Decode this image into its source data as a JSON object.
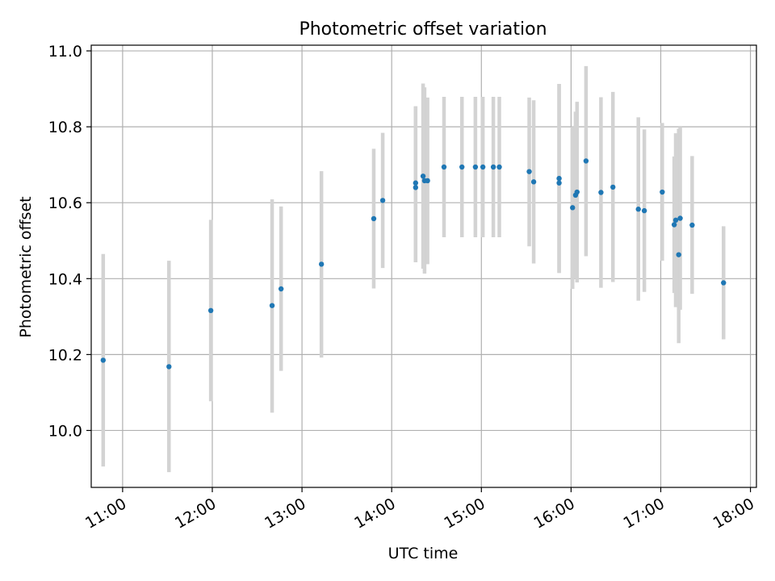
{
  "chart_data": {
    "type": "scatter",
    "title": "Photometric offset variation",
    "xlabel": "UTC time",
    "ylabel": "Photometric offset",
    "x_is_time": true,
    "xlim": [
      "10:39",
      "18:04"
    ],
    "ylim": [
      9.85,
      11.015
    ],
    "xticks": [
      "11:00",
      "12:00",
      "13:00",
      "14:00",
      "15:00",
      "16:00",
      "17:00",
      "18:00"
    ],
    "yticks": [
      10.0,
      10.2,
      10.4,
      10.6,
      10.8,
      11.0
    ],
    "ytick_labels": [
      "10.0",
      "10.2",
      "10.4",
      "10.6",
      "10.8",
      "11.0"
    ],
    "grid": true,
    "point_color": "#1f77b4",
    "errorbar_color": "#d3d3d3",
    "points": [
      {
        "t": "10:47",
        "y": 10.185,
        "lo": 9.905,
        "hi": 10.465
      },
      {
        "t": "11:31",
        "y": 10.168,
        "lo": 9.89,
        "hi": 10.447
      },
      {
        "t": "11:59",
        "y": 10.316,
        "lo": 10.077,
        "hi": 10.555
      },
      {
        "t": "12:40",
        "y": 10.329,
        "lo": 10.047,
        "hi": 10.609
      },
      {
        "t": "12:46",
        "y": 10.373,
        "lo": 10.157,
        "hi": 10.59
      },
      {
        "t": "13:13",
        "y": 10.438,
        "lo": 10.192,
        "hi": 10.683
      },
      {
        "t": "13:48",
        "y": 10.558,
        "lo": 10.374,
        "hi": 10.742
      },
      {
        "t": "13:54",
        "y": 10.606,
        "lo": 10.428,
        "hi": 10.784
      },
      {
        "t": "14:16",
        "y": 10.652,
        "lo": 10.443,
        "hi": 10.854
      },
      {
        "t": "14:16",
        "y": 10.64,
        "lo": 10.443,
        "hi": 10.854
      },
      {
        "t": "14:21",
        "y": 10.67,
        "lo": 10.426,
        "hi": 10.914
      },
      {
        "t": "14:22",
        "y": 10.658,
        "lo": 10.413,
        "hi": 10.904
      },
      {
        "t": "14:24",
        "y": 10.658,
        "lo": 10.438,
        "hi": 10.877
      },
      {
        "t": "14:35",
        "y": 10.694,
        "lo": 10.509,
        "hi": 10.879
      },
      {
        "t": "14:47",
        "y": 10.694,
        "lo": 10.509,
        "hi": 10.879
      },
      {
        "t": "14:56",
        "y": 10.694,
        "lo": 10.509,
        "hi": 10.879
      },
      {
        "t": "15:01",
        "y": 10.694,
        "lo": 10.509,
        "hi": 10.879
      },
      {
        "t": "15:08",
        "y": 10.694,
        "lo": 10.509,
        "hi": 10.879
      },
      {
        "t": "15:12",
        "y": 10.694,
        "lo": 10.509,
        "hi": 10.879
      },
      {
        "t": "15:32",
        "y": 10.682,
        "lo": 10.485,
        "hi": 10.877
      },
      {
        "t": "15:35",
        "y": 10.655,
        "lo": 10.44,
        "hi": 10.87
      },
      {
        "t": "15:52",
        "y": 10.664,
        "lo": 10.415,
        "hi": 10.913
      },
      {
        "t": "15:52",
        "y": 10.652,
        "lo": 10.415,
        "hi": 10.913
      },
      {
        "t": "16:01",
        "y": 10.587,
        "lo": 10.373,
        "hi": 10.8
      },
      {
        "t": "16:03",
        "y": 10.62,
        "lo": 10.4,
        "hi": 10.84
      },
      {
        "t": "16:04",
        "y": 10.628,
        "lo": 10.39,
        "hi": 10.866
      },
      {
        "t": "16:10",
        "y": 10.71,
        "lo": 10.459,
        "hi": 10.96
      },
      {
        "t": "16:20",
        "y": 10.627,
        "lo": 10.376,
        "hi": 10.878
      },
      {
        "t": "16:28",
        "y": 10.641,
        "lo": 10.391,
        "hi": 10.892
      },
      {
        "t": "16:45",
        "y": 10.583,
        "lo": 10.342,
        "hi": 10.825
      },
      {
        "t": "16:49",
        "y": 10.579,
        "lo": 10.365,
        "hi": 10.793
      },
      {
        "t": "17:01",
        "y": 10.628,
        "lo": 10.447,
        "hi": 10.81
      },
      {
        "t": "17:09",
        "y": 10.542,
        "lo": 10.362,
        "hi": 10.722
      },
      {
        "t": "17:10",
        "y": 10.554,
        "lo": 10.325,
        "hi": 10.783
      },
      {
        "t": "17:12",
        "y": 10.463,
        "lo": 10.23,
        "hi": 10.795
      },
      {
        "t": "17:13",
        "y": 10.559,
        "lo": 10.318,
        "hi": 10.8
      },
      {
        "t": "17:21",
        "y": 10.541,
        "lo": 10.36,
        "hi": 10.723
      },
      {
        "t": "17:42",
        "y": 10.389,
        "lo": 10.24,
        "hi": 10.538
      }
    ]
  }
}
